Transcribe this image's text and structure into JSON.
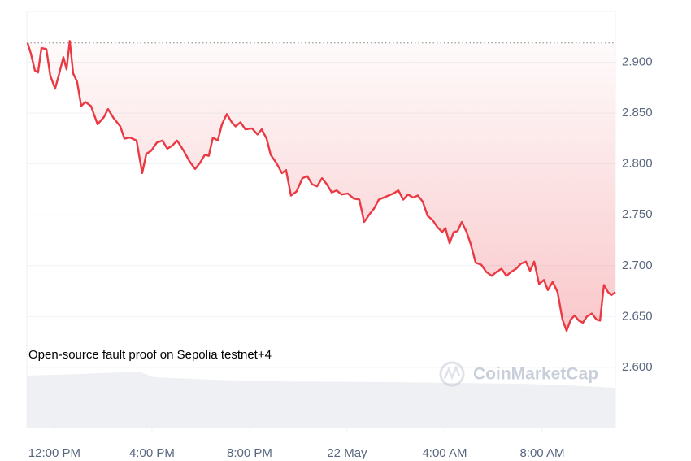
{
  "chart_data": {
    "type": "line",
    "annotation": "Open-source fault proof on Sepolia testnet+4",
    "watermark": "CoinMarketCap",
    "xlim": [
      10.87,
      35.0
    ],
    "xticks": [
      {
        "value": 12,
        "label": "12:00 PM"
      },
      {
        "value": 16,
        "label": "4:00 PM"
      },
      {
        "value": 20,
        "label": "8:00 PM"
      },
      {
        "value": 24,
        "label": "22 May"
      },
      {
        "value": 28,
        "label": "4:00 AM"
      },
      {
        "value": 32,
        "label": "8:00 AM"
      }
    ],
    "ylim": [
      2.54,
      2.95
    ],
    "yticks": [
      {
        "value": 2.6,
        "label": "2.600"
      },
      {
        "value": 2.65,
        "label": "2.650"
      },
      {
        "value": 2.7,
        "label": "2.700"
      },
      {
        "value": 2.75,
        "label": "2.750"
      },
      {
        "value": 2.8,
        "label": "2.800"
      },
      {
        "value": 2.85,
        "label": "2.850"
      },
      {
        "value": 2.9,
        "label": "2.900"
      }
    ],
    "grid": true,
    "series": [
      {
        "color": "#ea3943",
        "x": [
          10.9,
          11.03,
          11.2,
          11.33,
          11.47,
          11.67,
          11.83,
          12.03,
          12.2,
          12.37,
          12.5,
          12.63,
          12.77,
          12.93,
          13.1,
          13.27,
          13.5,
          13.77,
          14.03,
          14.2,
          14.43,
          14.7,
          14.87,
          15.1,
          15.37,
          15.6,
          15.77,
          15.97,
          16.2,
          16.43,
          16.63,
          16.83,
          17.03,
          17.3,
          17.53,
          17.77,
          17.97,
          18.17,
          18.33,
          18.5,
          18.7,
          18.87,
          19.07,
          19.27,
          19.43,
          19.63,
          19.83,
          20.1,
          20.33,
          20.5,
          20.7,
          20.87,
          21.1,
          21.33,
          21.5,
          21.7,
          21.93,
          22.17,
          22.37,
          22.57,
          22.77,
          22.97,
          23.17,
          23.37,
          23.57,
          23.77,
          24.03,
          24.27,
          24.5,
          24.7,
          24.93,
          25.1,
          25.3,
          25.5,
          25.7,
          25.9,
          26.1,
          26.3,
          26.5,
          26.7,
          26.9,
          27.1,
          27.3,
          27.5,
          27.7,
          27.9,
          28.03,
          28.2,
          28.37,
          28.53,
          28.7,
          28.9,
          29.07,
          29.27,
          29.5,
          29.7,
          29.93,
          30.13,
          30.33,
          30.53,
          30.73,
          30.93,
          31.13,
          31.33,
          31.5,
          31.67,
          31.87,
          32.07,
          32.23,
          32.43,
          32.63,
          32.83,
          33.0,
          33.17,
          33.33,
          33.5,
          33.67,
          33.83,
          34.03,
          34.23,
          34.37,
          34.53,
          34.7,
          34.83,
          35.0
        ],
        "values": [
          2.919,
          2.909,
          2.892,
          2.89,
          2.914,
          2.913,
          2.887,
          2.874,
          2.889,
          2.905,
          2.893,
          2.921,
          2.889,
          2.881,
          2.857,
          2.861,
          2.857,
          2.839,
          2.846,
          2.854,
          2.845,
          2.837,
          2.825,
          2.826,
          2.823,
          2.791,
          2.81,
          2.813,
          2.821,
          2.823,
          2.815,
          2.818,
          2.823,
          2.813,
          2.803,
          2.795,
          2.801,
          2.809,
          2.808,
          2.826,
          2.823,
          2.839,
          2.849,
          2.841,
          2.837,
          2.841,
          2.834,
          2.835,
          2.829,
          2.834,
          2.825,
          2.809,
          2.801,
          2.791,
          2.794,
          2.769,
          2.773,
          2.786,
          2.788,
          2.78,
          2.778,
          2.786,
          2.78,
          2.772,
          2.774,
          2.77,
          2.771,
          2.766,
          2.765,
          2.743,
          2.751,
          2.756,
          2.765,
          2.767,
          2.769,
          2.771,
          2.774,
          2.765,
          2.77,
          2.767,
          2.769,
          2.763,
          2.749,
          2.745,
          2.738,
          2.733,
          2.737,
          2.722,
          2.733,
          2.734,
          2.743,
          2.733,
          2.721,
          2.703,
          2.701,
          2.694,
          2.69,
          2.694,
          2.697,
          2.69,
          2.694,
          2.697,
          2.702,
          2.704,
          2.695,
          2.704,
          2.682,
          2.686,
          2.676,
          2.684,
          2.674,
          2.647,
          2.636,
          2.647,
          2.651,
          2.646,
          2.644,
          2.65,
          2.653,
          2.647,
          2.646,
          2.681,
          2.674,
          2.671,
          2.674
        ]
      }
    ]
  }
}
